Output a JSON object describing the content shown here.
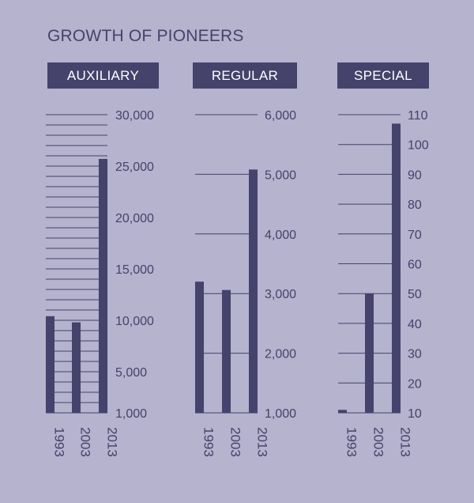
{
  "title": "GROWTH OF PIONEERS",
  "colors": {
    "background": "#b5b3cd",
    "bar": "#45426c",
    "line": "#45426c",
    "text": "#45426c",
    "header_text": "#ffffff"
  },
  "chart_data": [
    {
      "type": "bar",
      "title": "AUXILIARY",
      "categories": [
        "1993",
        "2003",
        "2013"
      ],
      "values": [
        10400,
        9800,
        25700
      ],
      "ylim": [
        1000,
        30000
      ],
      "ticks": [
        1000,
        5000,
        10000,
        15000,
        20000,
        25000,
        30000
      ],
      "tick_labels": [
        "1,000",
        "5,000",
        "10,000",
        "15,000",
        "20,000",
        "25,000",
        "30,000"
      ],
      "grid": true
    },
    {
      "type": "bar",
      "title": "REGULAR",
      "categories": [
        "1993",
        "2003",
        "2013"
      ],
      "values": [
        3200,
        3060,
        5080
      ],
      "ylim": [
        1000,
        6000
      ],
      "ticks": [
        1000,
        2000,
        3000,
        4000,
        5000,
        6000
      ],
      "tick_labels": [
        "1,000",
        "2,000",
        "3,000",
        "4,000",
        "5,000",
        "6,000"
      ],
      "grid": true
    },
    {
      "type": "bar",
      "title": "SPECIAL",
      "categories": [
        "1993",
        "2003",
        "2013"
      ],
      "values": [
        11,
        50,
        107
      ],
      "ylim": [
        10,
        110
      ],
      "ticks": [
        10,
        20,
        30,
        40,
        50,
        60,
        70,
        80,
        90,
        100,
        110
      ],
      "tick_labels": [
        "10",
        "20",
        "30",
        "40",
        "50",
        "60",
        "70",
        "80",
        "90",
        "100",
        "110"
      ],
      "grid": true
    }
  ]
}
